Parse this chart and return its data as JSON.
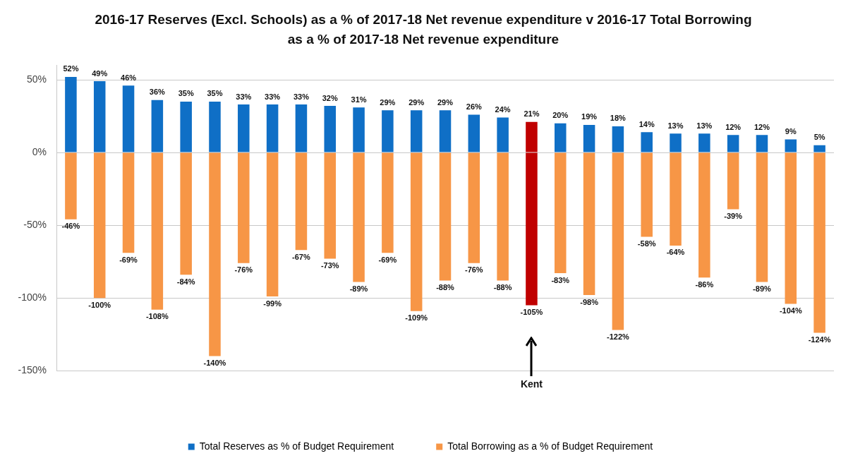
{
  "chart_data": {
    "type": "bar",
    "title": "2016-17 Reserves (Excl. Schools) as a % of 2017-18 Net revenue expenditure v 2016-17 Total Borrowing as a % of 2017-18 Net revenue expenditure",
    "categories": [
      null,
      null,
      null,
      null,
      null,
      null,
      null,
      null,
      null,
      null,
      null,
      null,
      null,
      null,
      null,
      null,
      "Kent",
      null,
      null,
      null,
      null,
      null,
      null,
      null,
      null,
      null,
      null
    ],
    "stacked": true,
    "grid": "y",
    "legend": "bottom",
    "ylim": [
      -150,
      60
    ],
    "yticks": [
      {
        "value": -150,
        "label": "-150%"
      },
      {
        "value": -100,
        "label": "-100%"
      },
      {
        "value": -50,
        "label": "-50%"
      },
      {
        "value": 0,
        "label": "0%"
      },
      {
        "value": 50,
        "label": "50%"
      }
    ],
    "series": [
      {
        "name": "Total Reserves as % of Budget Requirement",
        "color": "#0f6fc6",
        "colors": [
          "#0f6fc6",
          "#0f6fc6",
          "#0f6fc6",
          "#0f6fc6",
          "#0f6fc6",
          "#0f6fc6",
          "#0f6fc6",
          "#0f6fc6",
          "#0f6fc6",
          "#0f6fc6",
          "#0f6fc6",
          "#0f6fc6",
          "#0f6fc6",
          "#0f6fc6",
          "#0f6fc6",
          "#0f6fc6",
          "#c00000",
          "#0f6fc6",
          "#0f6fc6",
          "#0f6fc6",
          "#0f6fc6",
          "#0f6fc6",
          "#0f6fc6",
          "#0f6fc6",
          "#0f6fc6",
          "#0f6fc6",
          "#0f6fc6"
        ],
        "values": [
          52,
          49,
          46,
          36,
          35,
          35,
          33,
          33,
          33,
          32,
          31,
          29,
          29,
          29,
          26,
          24,
          21,
          20,
          19,
          18,
          14,
          13,
          13,
          12,
          12,
          9,
          5
        ],
        "value_labels": [
          "52%",
          "49%",
          "46%",
          "36%",
          "35%",
          "35%",
          "33%",
          "33%",
          "33%",
          "32%",
          "31%",
          "29%",
          "29%",
          "29%",
          "26%",
          "24%",
          "21%",
          "20%",
          "19%",
          "18%",
          "14%",
          "13%",
          "13%",
          "12%",
          "12%",
          "9%",
          "5%"
        ]
      },
      {
        "name": "Total Borrowing as a % of Budget Requirement",
        "color": "#f79646",
        "colors": [
          "#f79646",
          "#f79646",
          "#f79646",
          "#f79646",
          "#f79646",
          "#f79646",
          "#f79646",
          "#f79646",
          "#f79646",
          "#f79646",
          "#f79646",
          "#f79646",
          "#f79646",
          "#f79646",
          "#f79646",
          "#f79646",
          "#c00000",
          "#f79646",
          "#f79646",
          "#f79646",
          "#f79646",
          "#f79646",
          "#f79646",
          "#f79646",
          "#f79646",
          "#f79646",
          "#f79646"
        ],
        "values": [
          -46,
          -100,
          -69,
          -108,
          -84,
          -140,
          -76,
          -99,
          -67,
          -73,
          -89,
          -69,
          -109,
          -88,
          -76,
          -88,
          -105,
          -83,
          -98,
          -122,
          -58,
          -64,
          -86,
          -39,
          -89,
          -104,
          -124
        ],
        "value_labels": [
          "-46%",
          "-100%",
          "-69%",
          "-108%",
          "-84%",
          "-140%",
          "-76%",
          "-99%",
          "-67%",
          "-73%",
          "-89%",
          "-69%",
          "-109%",
          "-88%",
          "-76%",
          "-88%",
          "-105%",
          "-83%",
          "-98%",
          "-122%",
          "-58%",
          "-64%",
          "-86%",
          "-39%",
          "-89%",
          "-104%",
          "-124%"
        ]
      }
    ]
  }
}
